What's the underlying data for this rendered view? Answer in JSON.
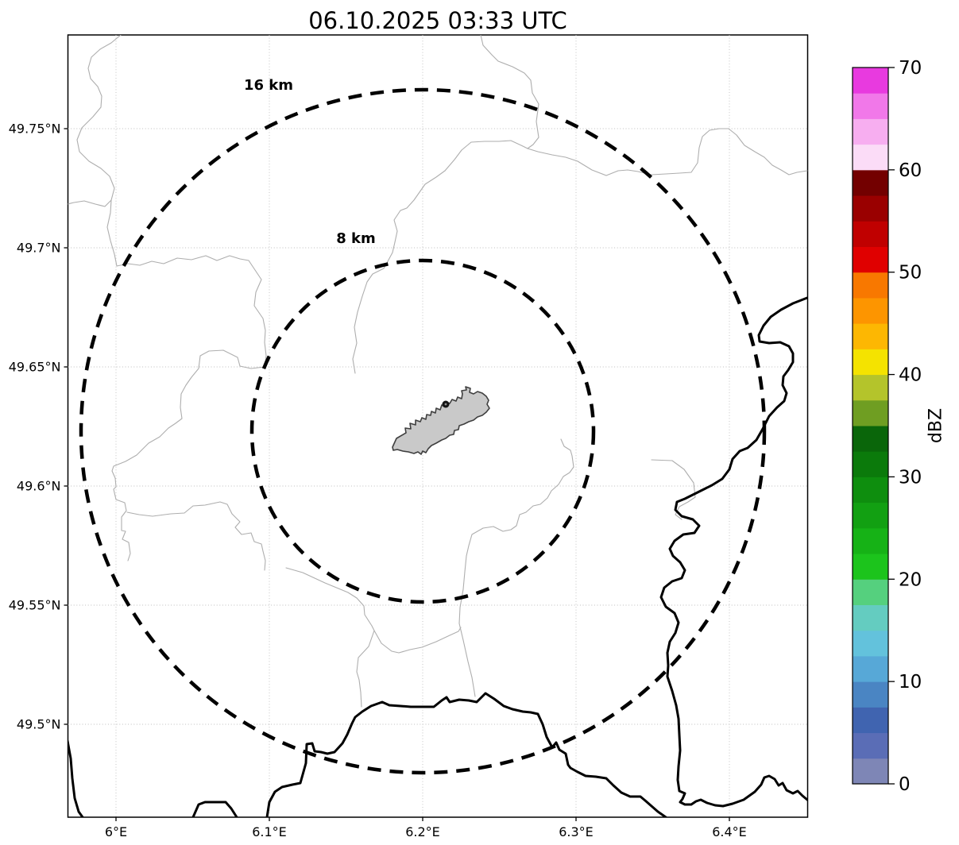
{
  "title": "06.10.2025 03:33 UTC",
  "map": {
    "x_tick_labels": [
      "6°E",
      "6.1°E",
      "6.2°E",
      "6.3°E",
      "6.4°E"
    ],
    "y_tick_labels": [
      "49.75°N",
      "49.7°N",
      "49.65°N",
      "49.6°N",
      "49.55°N",
      "49.5°N"
    ],
    "range_ring_labels": [
      "16 km",
      "8 km"
    ]
  },
  "colorbar": {
    "label": "dBZ",
    "tick_labels": [
      "0",
      "10",
      "20",
      "30",
      "40",
      "50",
      "60",
      "70"
    ],
    "tick_values": [
      0,
      10,
      20,
      30,
      40,
      50,
      60,
      70
    ],
    "min": 0,
    "max": 70,
    "step_dbz": 2.5,
    "colors_low_to_high": [
      "#7e86b6",
      "#5a6db6",
      "#4064b0",
      "#4a85c3",
      "#57a8d7",
      "#63c2dc",
      "#64ccc0",
      "#55d07e",
      "#1cc41c",
      "#16b216",
      "#12a012",
      "#0e8e0e",
      "#0b7a0b",
      "#0a660a",
      "#6f9e22",
      "#b4c42b",
      "#f4e300",
      "#fdb702",
      "#fd9500",
      "#f87800",
      "#e00000",
      "#c00000",
      "#9a0000",
      "#730000",
      "#fbdcf7",
      "#f7aef0",
      "#f178e9",
      "#e83adf"
    ]
  },
  "chart_data": {
    "type": "heatmap",
    "title": "06.10.2025 03:33 UTC",
    "xlabel": "",
    "ylabel": "",
    "x_tick_labels": [
      "6°E",
      "6.1°E",
      "6.2°E",
      "6.3°E",
      "6.4°E"
    ],
    "y_tick_labels": [
      "49.75°N",
      "49.7°N",
      "49.65°N",
      "49.6°N",
      "49.55°N",
      "49.5°N"
    ],
    "x_range_deg_e": [
      5.97,
      6.45
    ],
    "y_range_deg_n": [
      49.46,
      49.79
    ],
    "grid": true,
    "colorbar": {
      "label": "dBZ",
      "min": 0,
      "max": 70,
      "ticks": [
        0,
        10,
        20,
        30,
        40,
        50,
        60,
        70
      ],
      "n_color_steps": 28,
      "legend_position": "right"
    },
    "range_rings": [
      {
        "label": "8 km",
        "radius_km": 8
      },
      {
        "label": "16 km",
        "radius_km": 16
      }
    ],
    "ring_center": {
      "lon_deg_e": 6.2,
      "lat_deg_n": 49.62
    },
    "reflectivity_echoes": []
  }
}
